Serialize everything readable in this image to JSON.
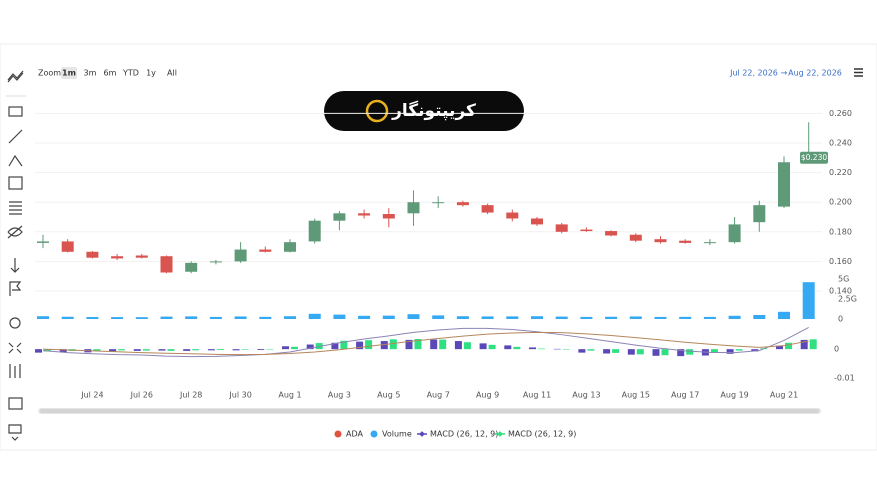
{
  "logo": {
    "text": "کریپتونگار"
  },
  "zoom": {
    "label": "Zoom",
    "buttons": [
      "1m",
      "3m",
      "6m",
      "YTD",
      "1y",
      "All"
    ],
    "active": "1m"
  },
  "date_range": {
    "from": "Jul 22, 2026",
    "arrow": "→",
    "to": "Aug 22, 2026"
  },
  "chart_data": {
    "type": "candlestick",
    "name": "ADA",
    "color": "#e0533d",
    "up_color": "#5e9a78",
    "down_color": "#d9534f",
    "grid": true,
    "categories": [
      null,
      null,
      "Jul 24",
      null,
      "Jul 26",
      null,
      "Jul 28",
      null,
      "Jul 30",
      null,
      "Aug 1",
      null,
      "Aug 3",
      null,
      "Aug 5",
      null,
      "Aug 7",
      null,
      "Aug 9",
      null,
      "Aug 11",
      null,
      "Aug 13",
      null,
      "Aug 15",
      null,
      "Aug 17",
      null,
      "Aug 19",
      null,
      "Aug 21",
      null
    ],
    "open": [
      0.1725,
      0.1735,
      0.1665,
      0.1635,
      0.164,
      0.1635,
      0.153,
      0.1595,
      0.16,
      0.168,
      0.1665,
      0.1735,
      0.1875,
      0.1925,
      0.192,
      0.1925,
      0.1995,
      0.2,
      0.198,
      0.193,
      0.189,
      0.185,
      0.1815,
      0.1805,
      0.178,
      0.175,
      0.174,
      0.1725,
      0.173,
      0.1865,
      0.197,
      0.229
    ],
    "high": [
      0.178,
      0.175,
      0.167,
      0.165,
      0.165,
      0.164,
      0.16,
      0.161,
      0.173,
      0.17,
      0.175,
      0.189,
      0.194,
      0.195,
      0.196,
      0.208,
      0.204,
      0.201,
      0.199,
      0.195,
      0.19,
      0.186,
      0.183,
      0.181,
      0.179,
      0.177,
      0.175,
      0.175,
      0.19,
      0.201,
      0.231,
      0.254
    ],
    "low": [
      0.169,
      0.166,
      0.162,
      0.161,
      0.162,
      0.152,
      0.152,
      0.158,
      0.159,
      0.166,
      0.166,
      0.172,
      0.181,
      0.189,
      0.183,
      0.184,
      0.196,
      0.197,
      0.192,
      0.187,
      0.184,
      0.179,
      0.18,
      0.177,
      0.173,
      0.172,
      0.172,
      0.171,
      0.172,
      0.18,
      0.196,
      0.229
    ],
    "close": [
      0.1735,
      0.1665,
      0.1625,
      0.162,
      0.1625,
      0.1525,
      0.159,
      0.16,
      0.168,
      0.1665,
      0.173,
      0.1875,
      0.1925,
      0.191,
      0.189,
      0.2,
      0.2,
      0.198,
      0.193,
      0.189,
      0.185,
      0.18,
      0.1805,
      0.1775,
      0.174,
      0.173,
      0.1725,
      0.173,
      0.185,
      0.198,
      0.227,
      0.23
    ],
    "ylim": [
      0.14,
      0.265
    ],
    "yticks": [
      {
        "value": 0.14,
        "label": "0.140"
      },
      {
        "value": 0.16,
        "label": "0.160"
      },
      {
        "value": 0.18,
        "label": "0.180"
      },
      {
        "value": 0.2,
        "label": "0.200"
      },
      {
        "value": 0.22,
        "label": "0.220"
      },
      {
        "value": 0.24,
        "label": "0.240"
      },
      {
        "value": 0.26,
        "label": "0.260"
      }
    ],
    "last_price": {
      "value": 0.23,
      "label": "$0.230"
    },
    "volume": {
      "name": "Volume",
      "color": "#36a9f3",
      "values": [
        350000000,
        280000000,
        250000000,
        240000000,
        230000000,
        300000000,
        330000000,
        260000000,
        320000000,
        270000000,
        350000000,
        650000000,
        550000000,
        400000000,
        420000000,
        600000000,
        450000000,
        350000000,
        320000000,
        330000000,
        350000000,
        300000000,
        260000000,
        280000000,
        320000000,
        260000000,
        270000000,
        260000000,
        400000000,
        500000000,
        900000000,
        4600000000
      ],
      "ylim": [
        0,
        5000000000
      ],
      "yticks": [
        0,
        {
          "value": 2500000000,
          "label": "2.5G"
        },
        {
          "value": 5000000000,
          "label": "5G"
        }
      ]
    },
    "macd": {
      "ylim": [
        -0.011,
        0.008
      ],
      "yticks": [
        -0.01,
        0
      ],
      "series": [
        {
          "name": "MACD (26, 12, 9)",
          "color": "#5a48b8",
          "type": "bar",
          "values": [
            -0.0012,
            -0.001,
            -0.0011,
            -0.0008,
            -0.0006,
            -0.0005,
            -0.0006,
            -0.0004,
            -0.0004,
            -0.0003,
            0.001,
            0.0016,
            0.0022,
            0.0026,
            0.0028,
            0.0032,
            0.0033,
            0.0028,
            0.002,
            0.0013,
            0.0006,
            0.0001,
            -0.0012,
            -0.0015,
            -0.0019,
            -0.0023,
            -0.0024,
            -0.0022,
            -0.0016,
            -0.0008,
            0.0012,
            0.0032
          ]
        },
        {
          "name": "MACD (26, 12, 9)",
          "color": "#2fe082",
          "type": "bar",
          "values": [
            -0.0008,
            -0.0006,
            -0.0005,
            -0.0004,
            -0.0005,
            -0.0006,
            -0.0004,
            -0.0003,
            -0.0002,
            -0.0001,
            0.0008,
            0.0021,
            0.0029,
            0.0031,
            0.0034,
            0.0035,
            0.0033,
            0.0024,
            0.0015,
            0.0008,
            0.0002,
            0,
            -0.0005,
            -0.0013,
            -0.0018,
            -0.0021,
            -0.0019,
            -0.0013,
            -0.0005,
            0.0003,
            0.0022,
            0.0034
          ]
        },
        {
          "color": "#8c84b4",
          "type": "line",
          "values": [
            -0.0005,
            -0.0012,
            -0.0016,
            -0.0019,
            -0.002,
            -0.0024,
            -0.0026,
            -0.0025,
            -0.0022,
            -0.0018,
            -0.001,
            0.0006,
            0.0022,
            0.0035,
            0.0046,
            0.0058,
            0.0066,
            0.0072,
            0.0072,
            0.0068,
            0.006,
            0.005,
            0.0038,
            0.0026,
            0.0014,
            0.0003,
            -0.0006,
            -0.0011,
            -0.0012,
            -0.0005,
            0.003,
            0.0075
          ]
        },
        {
          "color": "#b5865a",
          "type": "line",
          "values": [
            0,
            -0.0003,
            -0.0006,
            -0.0009,
            -0.0012,
            -0.0014,
            -0.0016,
            -0.0018,
            -0.0019,
            -0.0018,
            -0.0015,
            -0.001,
            -0.0002,
            0.0008,
            0.0018,
            0.0028,
            0.0037,
            0.0045,
            0.0052,
            0.0056,
            0.0058,
            0.0057,
            0.0053,
            0.0047,
            0.004,
            0.0032,
            0.0024,
            0.0017,
            0.0011,
            0.0006,
            0.0012,
            0.0028
          ]
        }
      ]
    }
  }
}
